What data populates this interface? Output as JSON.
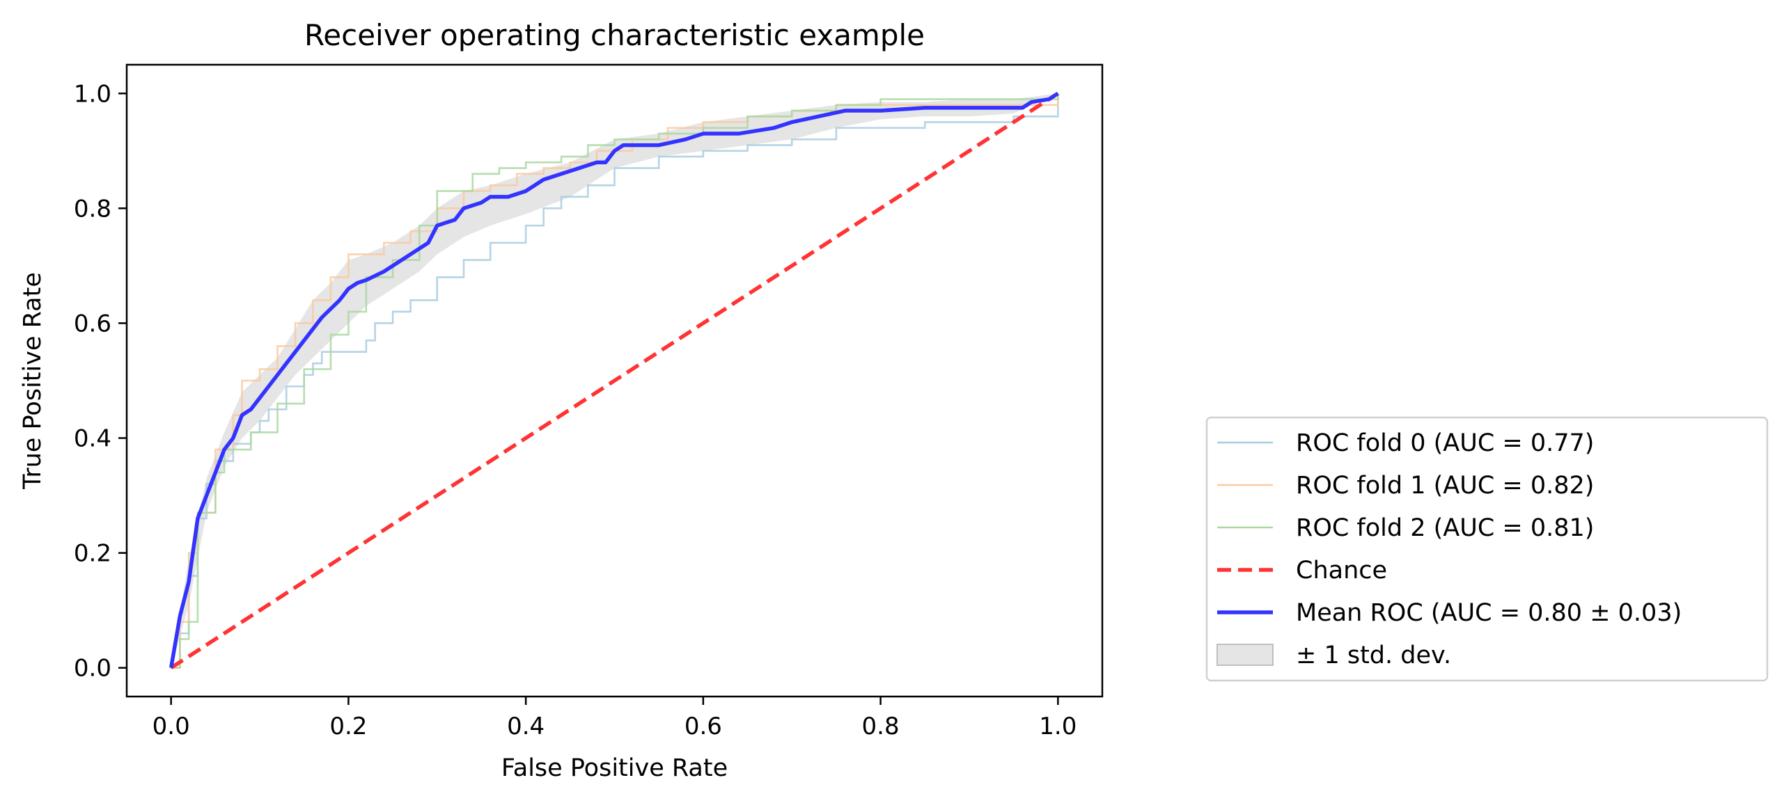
{
  "chart_data": {
    "type": "line",
    "title": "Receiver operating characteristic example",
    "xlabel": "False Positive Rate",
    "ylabel": "True Positive Rate",
    "xlim": [
      -0.05,
      1.05
    ],
    "ylim": [
      -0.05,
      1.05
    ],
    "xticks": [
      "0.0",
      "0.2",
      "0.4",
      "0.6",
      "0.8",
      "1.0"
    ],
    "yticks": [
      "0.0",
      "0.2",
      "0.4",
      "0.6",
      "0.8",
      "1.0"
    ],
    "grid": false,
    "legend_position": "lower-right outside",
    "series": [
      {
        "name": "ROC fold 0 (AUC = 0.77)",
        "style": "step",
        "color": "#a8cbe0",
        "points": [
          [
            0,
            0
          ],
          [
            0.01,
            0.06
          ],
          [
            0.02,
            0.16
          ],
          [
            0.03,
            0.26
          ],
          [
            0.04,
            0.32
          ],
          [
            0.05,
            0.36
          ],
          [
            0.07,
            0.39
          ],
          [
            0.09,
            0.41
          ],
          [
            0.1,
            0.43
          ],
          [
            0.11,
            0.45
          ],
          [
            0.13,
            0.49
          ],
          [
            0.15,
            0.51
          ],
          [
            0.16,
            0.53
          ],
          [
            0.17,
            0.55
          ],
          [
            0.2,
            0.55
          ],
          [
            0.22,
            0.57
          ],
          [
            0.23,
            0.6
          ],
          [
            0.25,
            0.62
          ],
          [
            0.27,
            0.64
          ],
          [
            0.3,
            0.68
          ],
          [
            0.33,
            0.71
          ],
          [
            0.36,
            0.74
          ],
          [
            0.4,
            0.77
          ],
          [
            0.42,
            0.8
          ],
          [
            0.44,
            0.82
          ],
          [
            0.47,
            0.84
          ],
          [
            0.5,
            0.87
          ],
          [
            0.55,
            0.89
          ],
          [
            0.6,
            0.9
          ],
          [
            0.65,
            0.91
          ],
          [
            0.7,
            0.92
          ],
          [
            0.75,
            0.94
          ],
          [
            0.8,
            0.94
          ],
          [
            0.85,
            0.95
          ],
          [
            0.95,
            0.96
          ],
          [
            1.0,
            1.0
          ]
        ]
      },
      {
        "name": "ROC fold 1 (AUC = 0.82)",
        "style": "step",
        "color": "#fcc9a0",
        "points": [
          [
            0,
            0
          ],
          [
            0.01,
            0.08
          ],
          [
            0.02,
            0.2
          ],
          [
            0.03,
            0.27
          ],
          [
            0.05,
            0.38
          ],
          [
            0.07,
            0.44
          ],
          [
            0.08,
            0.5
          ],
          [
            0.1,
            0.52
          ],
          [
            0.12,
            0.56
          ],
          [
            0.14,
            0.6
          ],
          [
            0.16,
            0.64
          ],
          [
            0.18,
            0.68
          ],
          [
            0.2,
            0.72
          ],
          [
            0.24,
            0.74
          ],
          [
            0.27,
            0.76
          ],
          [
            0.3,
            0.8
          ],
          [
            0.33,
            0.83
          ],
          [
            0.36,
            0.84
          ],
          [
            0.39,
            0.86
          ],
          [
            0.42,
            0.87
          ],
          [
            0.45,
            0.88
          ],
          [
            0.48,
            0.9
          ],
          [
            0.52,
            0.92
          ],
          [
            0.56,
            0.94
          ],
          [
            0.6,
            0.95
          ],
          [
            0.65,
            0.96
          ],
          [
            0.7,
            0.97
          ],
          [
            0.75,
            0.98
          ],
          [
            0.8,
            0.98
          ],
          [
            0.9,
            0.98
          ],
          [
            1.0,
            1.0
          ]
        ]
      },
      {
        "name": "ROC fold 2 (AUC = 0.81)",
        "style": "step",
        "color": "#a9d8a0",
        "points": [
          [
            0,
            0
          ],
          [
            0.01,
            0.05
          ],
          [
            0.02,
            0.08
          ],
          [
            0.03,
            0.27
          ],
          [
            0.05,
            0.34
          ],
          [
            0.06,
            0.38
          ],
          [
            0.09,
            0.41
          ],
          [
            0.12,
            0.46
          ],
          [
            0.15,
            0.52
          ],
          [
            0.18,
            0.58
          ],
          [
            0.2,
            0.62
          ],
          [
            0.22,
            0.68
          ],
          [
            0.25,
            0.71
          ],
          [
            0.28,
            0.77
          ],
          [
            0.3,
            0.83
          ],
          [
            0.34,
            0.86
          ],
          [
            0.37,
            0.87
          ],
          [
            0.4,
            0.88
          ],
          [
            0.44,
            0.89
          ],
          [
            0.47,
            0.91
          ],
          [
            0.5,
            0.92
          ],
          [
            0.55,
            0.93
          ],
          [
            0.6,
            0.94
          ],
          [
            0.65,
            0.96
          ],
          [
            0.7,
            0.97
          ],
          [
            0.75,
            0.98
          ],
          [
            0.8,
            0.99
          ],
          [
            0.9,
            0.99
          ],
          [
            1.0,
            1.0
          ]
        ]
      },
      {
        "name": "Chance",
        "style": "dashed",
        "color": "#ff3333",
        "points": [
          [
            0,
            0
          ],
          [
            1,
            1
          ]
        ]
      },
      {
        "name": "Mean ROC (AUC = 0.80 ± 0.03)",
        "style": "line",
        "color": "#3333ff",
        "points": [
          [
            0,
            0
          ],
          [
            0.01,
            0.09
          ],
          [
            0.02,
            0.15
          ],
          [
            0.03,
            0.26
          ],
          [
            0.04,
            0.3
          ],
          [
            0.05,
            0.34
          ],
          [
            0.06,
            0.38
          ],
          [
            0.07,
            0.4
          ],
          [
            0.08,
            0.44
          ],
          [
            0.09,
            0.45
          ],
          [
            0.1,
            0.47
          ],
          [
            0.11,
            0.49
          ],
          [
            0.12,
            0.51
          ],
          [
            0.13,
            0.53
          ],
          [
            0.14,
            0.55
          ],
          [
            0.15,
            0.57
          ],
          [
            0.16,
            0.59
          ],
          [
            0.17,
            0.61
          ],
          [
            0.18,
            0.625
          ],
          [
            0.19,
            0.64
          ],
          [
            0.2,
            0.66
          ],
          [
            0.21,
            0.67
          ],
          [
            0.22,
            0.675
          ],
          [
            0.24,
            0.69
          ],
          [
            0.26,
            0.71
          ],
          [
            0.28,
            0.73
          ],
          [
            0.29,
            0.74
          ],
          [
            0.3,
            0.77
          ],
          [
            0.32,
            0.78
          ],
          [
            0.33,
            0.8
          ],
          [
            0.35,
            0.81
          ],
          [
            0.36,
            0.82
          ],
          [
            0.38,
            0.82
          ],
          [
            0.4,
            0.83
          ],
          [
            0.42,
            0.85
          ],
          [
            0.44,
            0.86
          ],
          [
            0.46,
            0.87
          ],
          [
            0.48,
            0.88
          ],
          [
            0.49,
            0.88
          ],
          [
            0.5,
            0.9
          ],
          [
            0.51,
            0.91
          ],
          [
            0.55,
            0.91
          ],
          [
            0.58,
            0.92
          ],
          [
            0.6,
            0.93
          ],
          [
            0.64,
            0.93
          ],
          [
            0.68,
            0.94
          ],
          [
            0.7,
            0.95
          ],
          [
            0.73,
            0.96
          ],
          [
            0.76,
            0.97
          ],
          [
            0.8,
            0.97
          ],
          [
            0.85,
            0.975
          ],
          [
            0.9,
            0.975
          ],
          [
            0.96,
            0.975
          ],
          [
            0.97,
            0.985
          ],
          [
            0.99,
            0.99
          ],
          [
            1.0,
            1.0
          ]
        ]
      }
    ],
    "band": {
      "name": "± 1 std. dev.",
      "color": "#bfbfbf",
      "x": [
        0,
        0.02,
        0.04,
        0.06,
        0.08,
        0.1,
        0.12,
        0.14,
        0.16,
        0.18,
        0.2,
        0.22,
        0.25,
        0.28,
        0.3,
        0.33,
        0.36,
        0.4,
        0.45,
        0.5,
        0.55,
        0.6,
        0.65,
        0.7,
        0.75,
        0.8,
        0.85,
        0.9,
        0.95,
        1.0
      ],
      "upper": [
        0,
        0.19,
        0.33,
        0.41,
        0.48,
        0.51,
        0.54,
        0.59,
        0.64,
        0.67,
        0.71,
        0.72,
        0.74,
        0.77,
        0.8,
        0.83,
        0.84,
        0.86,
        0.88,
        0.92,
        0.93,
        0.95,
        0.96,
        0.97,
        0.98,
        0.985,
        0.985,
        0.99,
        0.99,
        1.0
      ],
      "lower": [
        0,
        0.11,
        0.27,
        0.35,
        0.4,
        0.43,
        0.47,
        0.51,
        0.54,
        0.57,
        0.6,
        0.63,
        0.66,
        0.69,
        0.72,
        0.75,
        0.77,
        0.79,
        0.82,
        0.87,
        0.89,
        0.9,
        0.91,
        0.92,
        0.94,
        0.955,
        0.96,
        0.96,
        0.965,
        1.0
      ]
    }
  }
}
